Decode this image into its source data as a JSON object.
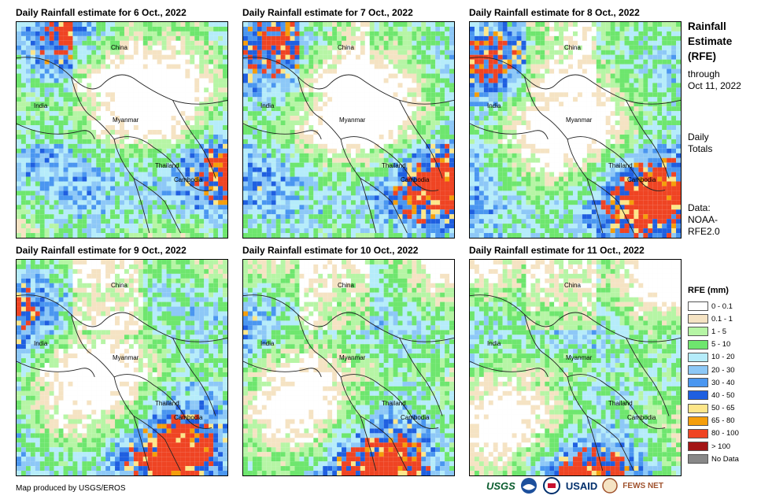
{
  "panels": [
    {
      "title": "Daily Rainfall estimate for 6 Oct., 2022"
    },
    {
      "title": "Daily Rainfall estimate for 7 Oct., 2022"
    },
    {
      "title": "Daily Rainfall estimate for 8 Oct., 2022"
    },
    {
      "title": "Daily Rainfall estimate for 9 Oct., 2022"
    },
    {
      "title": "Daily Rainfall estimate for 10 Oct., 2022"
    },
    {
      "title": "Daily Rainfall estimate for 11 Oct., 2022"
    }
  ],
  "places": {
    "china": "China",
    "india": "India",
    "myanmar": "Myanmar",
    "thailand": "Thailand",
    "cambodia": "Cambodia"
  },
  "sidebar": {
    "title_1": "Rainfall",
    "title_2": "Estimate",
    "title_3": "(RFE)",
    "through": "through",
    "date": "Oct 11, 2022",
    "daily": "Daily",
    "totals": "Totals",
    "data_label": "Data:",
    "data_src_1": "NOAA-",
    "data_src_2": "RFE2.0"
  },
  "legend": {
    "title": "RFE (mm)",
    "items": [
      {
        "label": "0 - 0.1",
        "color": "#ffffff"
      },
      {
        "label": "0.1 - 1",
        "color": "#f5e3c3"
      },
      {
        "label": "1 - 5",
        "color": "#b6f5a5"
      },
      {
        "label": "5 - 10",
        "color": "#6ee66e"
      },
      {
        "label": "10 - 20",
        "color": "#b5ecfa"
      },
      {
        "label": "20 - 30",
        "color": "#8dc8f7"
      },
      {
        "label": "30 - 40",
        "color": "#4a96f0"
      },
      {
        "label": "40 - 50",
        "color": "#1f5fe0"
      },
      {
        "label": "50 - 65",
        "color": "#fde68a"
      },
      {
        "label": "65 - 80",
        "color": "#f59e0b"
      },
      {
        "label": "80 - 100",
        "color": "#ef4423"
      },
      {
        "label": "> 100",
        "color": "#a31515"
      },
      {
        "label": "No Data",
        "color": "#888888"
      }
    ]
  },
  "credit": "Map produced by USGS/EROS",
  "logos": {
    "usgs": "USGS",
    "usaid": "USAID",
    "fewsnet": "FEWS NET"
  }
}
